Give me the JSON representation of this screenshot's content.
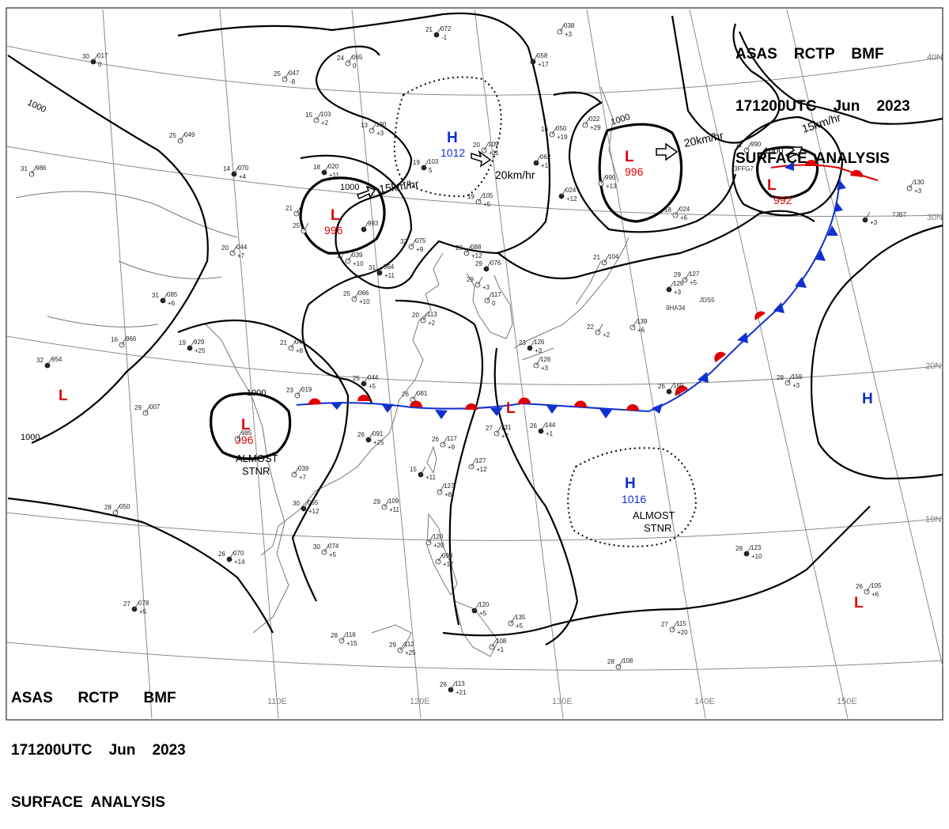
{
  "header_top": {
    "line1": "ASAS    RCTP    BMF",
    "line2": "171200UTC    Jun    2023",
    "line3": "SURFACE  ANALYSIS"
  },
  "header_bottom": {
    "line1": "ASAS      RCTP      BMF",
    "line2": "171200UTC    Jun    2023",
    "line3": "SURFACE  ANALYSIS"
  },
  "colors": {
    "low": "#e00000",
    "high": "#1030d0",
    "front_warm": "#e00000",
    "front_cold": "#1030d0",
    "isobar": "#000000",
    "grid": "#808080",
    "coast": "#777777"
  },
  "lat_labels": [
    "40N",
    "30N",
    "20N",
    "10N"
  ],
  "lon_labels": [
    "110E",
    "120E",
    "130E",
    "140E",
    "150E"
  ],
  "isobar_labels": [
    "1000",
    "1000",
    "1000",
    "1000",
    "1000"
  ],
  "pressure_centers": [
    {
      "type": "L",
      "value": "996"
    },
    {
      "type": "L",
      "value": "996"
    },
    {
      "type": "L",
      "value": "992"
    },
    {
      "type": "L",
      "value": "996"
    },
    {
      "type": "L",
      "value": ""
    },
    {
      "type": "L",
      "value": ""
    },
    {
      "type": "L",
      "value": ""
    },
    {
      "type": "H",
      "value": "1012"
    },
    {
      "type": "H",
      "value": "1016"
    },
    {
      "type": "H",
      "value": ""
    }
  ],
  "motions": [
    {
      "text": "15km/hr"
    },
    {
      "text": "20km/hr"
    },
    {
      "text": "20km/hr"
    },
    {
      "text": "15km/hr"
    }
  ],
  "annotations": [
    {
      "lines": [
        "ALMOST",
        "STNR"
      ]
    },
    {
      "lines": [
        "ALMOST",
        "STNR"
      ]
    }
  ],
  "stations": [
    {
      "t": "30",
      "p": "017",
      "c": "0"
    },
    {
      "t": "25",
      "p": "049",
      "c": ""
    },
    {
      "t": "31",
      "p": "986",
      "c": ""
    },
    {
      "t": "14",
      "p": "070",
      "c": "+4"
    },
    {
      "t": "25",
      "p": "047",
      "c": "-8"
    },
    {
      "t": "24",
      "p": "065",
      "c": "0"
    },
    {
      "t": "21",
      "p": "072",
      "c": "-1"
    },
    {
      "t": "15",
      "p": "103",
      "c": "+2"
    },
    {
      "t": "13",
      "p": "130",
      "c": "+3"
    },
    {
      "t": "19",
      "p": "103",
      "c": "5"
    },
    {
      "t": "20",
      "p": "109",
      "c": "+11"
    },
    {
      "t": "19",
      "p": "105",
      "c": "+5"
    },
    {
      "t": "18",
      "p": "020",
      "c": "+11"
    },
    {
      "t": "21",
      "p": "",
      "c": ""
    },
    {
      "t": "25",
      "p": "",
      "c": ""
    },
    {
      "t": "",
      "p": "993",
      "c": ""
    },
    {
      "t": "20",
      "p": "044",
      "c": "+7"
    },
    {
      "t": "27",
      "p": "039",
      "c": "+10"
    },
    {
      "t": "31",
      "p": "064",
      "c": "+11"
    },
    {
      "t": "32",
      "p": "075",
      "c": "+9"
    },
    {
      "t": "29",
      "p": "088",
      "c": "+12"
    },
    {
      "t": "29",
      "p": "076",
      "c": ""
    },
    {
      "t": "29",
      "p": "",
      "c": "+3"
    },
    {
      "t": "",
      "p": "117",
      "c": "0"
    },
    {
      "t": "31",
      "p": "085",
      "c": "+6"
    },
    {
      "t": "25",
      "p": "066",
      "c": "+10"
    },
    {
      "t": "16",
      "p": "966",
      "c": ""
    },
    {
      "t": "19",
      "p": "929",
      "c": "+25"
    },
    {
      "t": "21",
      "p": "045",
      "c": "+8"
    },
    {
      "t": "20",
      "p": "113",
      "c": "+2"
    },
    {
      "t": "32",
      "p": "954",
      "c": ""
    },
    {
      "t": "29",
      "p": "007",
      "c": ""
    },
    {
      "t": "23",
      "p": "019",
      "c": ""
    },
    {
      "t": "25",
      "p": "044",
      "c": "+5"
    },
    {
      "t": "26",
      "p": "081",
      "c": ""
    },
    {
      "t": "",
      "p": "985",
      "c": ""
    },
    {
      "t": "26",
      "p": "091",
      "c": "+25"
    },
    {
      "t": "26",
      "p": "117",
      "c": "+9"
    },
    {
      "t": "27",
      "p": "131",
      "c": "+7"
    },
    {
      "t": "26",
      "p": "144",
      "c": "+1"
    },
    {
      "t": "",
      "p": "127",
      "c": "+12"
    },
    {
      "t": "",
      "p": "039",
      "c": "+7"
    },
    {
      "t": "15",
      "p": "",
      "c": "+11"
    },
    {
      "t": "",
      "p": "127",
      "c": "+8"
    },
    {
      "t": "28",
      "p": "050",
      "c": ""
    },
    {
      "t": "30",
      "p": "055",
      "c": "+12"
    },
    {
      "t": "29",
      "p": "109",
      "c": "+11"
    },
    {
      "t": "30",
      "p": "074",
      "c": "+5"
    },
    {
      "t": "26",
      "p": "070",
      "c": "+14"
    },
    {
      "t": "",
      "p": "120",
      "c": "+20"
    },
    {
      "t": "",
      "p": "098",
      "c": "+17"
    },
    {
      "t": "27",
      "p": "078",
      "c": "+5"
    },
    {
      "t": "28",
      "p": "116",
      "c": "+15"
    },
    {
      "t": "29",
      "p": "112",
      "c": "+25"
    },
    {
      "t": "",
      "p": "120",
      "c": "+5"
    },
    {
      "t": "",
      "p": "135",
      "c": "+5"
    },
    {
      "t": "",
      "p": "108",
      "c": "+1"
    },
    {
      "t": "26",
      "p": "113",
      "c": "+21"
    },
    {
      "t": "28",
      "p": "108",
      "c": ""
    },
    {
      "t": "27",
      "p": "115",
      "c": "+20"
    },
    {
      "t": "28",
      "p": "123",
      "c": "+10"
    },
    {
      "t": "26",
      "p": "105",
      "c": "+6"
    },
    {
      "t": "28",
      "p": "159",
      "c": "+3"
    },
    {
      "t": "26",
      "p": "169",
      "c": "+1"
    },
    {
      "t": "",
      "p": "139",
      "c": "+6"
    },
    {
      "t": "22",
      "p": "",
      "c": "+2"
    },
    {
      "t": "23",
      "p": "126",
      "c": "+3"
    },
    {
      "t": "",
      "p": "126",
      "c": "+3"
    },
    {
      "t": "29",
      "p": "127",
      "c": "+5"
    },
    {
      "t": "",
      "p": "126",
      "c": "+3"
    },
    {
      "t": "21",
      "p": "104",
      "c": ""
    },
    {
      "t": "18",
      "p": "024",
      "c": "+6"
    },
    {
      "t": "",
      "p": "024",
      "c": "+12"
    },
    {
      "t": "",
      "p": "990",
      "c": "+13"
    },
    {
      "t": "16",
      "p": "050",
      "c": "+19"
    },
    {
      "t": "",
      "p": "062",
      "c": "+1"
    },
    {
      "t": "",
      "p": "022",
      "c": "+29"
    },
    {
      "t": "",
      "p": "038",
      "c": "+3"
    },
    {
      "t": "",
      "p": "058",
      "c": "+17"
    },
    {
      "t": "11",
      "p": "990",
      "c": ""
    },
    {
      "t": "",
      "p": "130",
      "c": "+3"
    },
    {
      "t": "",
      "p": "",
      "c": "+3"
    }
  ],
  "ship_ids": [
    "3FFG7",
    "9HA34",
    "JDS5",
    "7JB7"
  ]
}
